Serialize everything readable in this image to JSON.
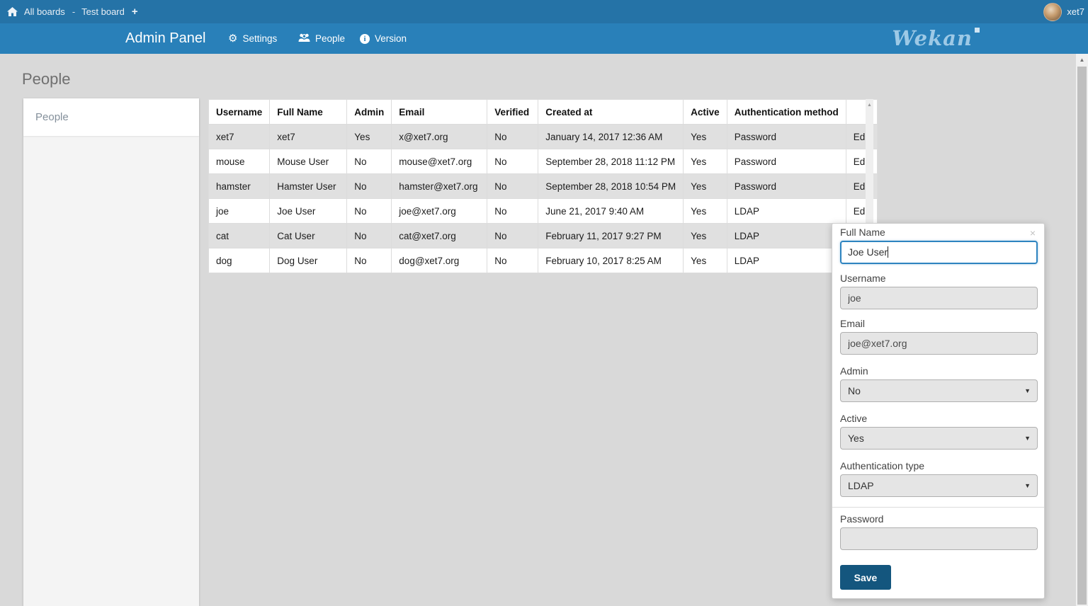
{
  "topbar": {
    "breadcrumb": {
      "all_boards": "All boards",
      "separator": "-",
      "board_name": "Test board"
    },
    "user": {
      "name": "xet7"
    }
  },
  "navbar": {
    "title": "Admin Panel",
    "items": [
      {
        "icon": "gear-icon",
        "label": "Settings"
      },
      {
        "icon": "people-icon",
        "label": "People"
      },
      {
        "icon": "info-icon",
        "label": "Version"
      }
    ],
    "logo_text": "Wekan"
  },
  "main": {
    "heading": "People",
    "sidebar_items": [
      {
        "label": "People",
        "active": true
      }
    ]
  },
  "table": {
    "headers": [
      "Username",
      "Full Name",
      "Admin",
      "Email",
      "Verified",
      "Created at",
      "Active",
      "Authentication method",
      ""
    ],
    "rows": [
      [
        "xet7",
        "xet7",
        "Yes",
        "x@xet7.org",
        "No",
        "January 14, 2017 12:36 AM",
        "Yes",
        "Password"
      ],
      [
        "mouse",
        "Mouse User",
        "No",
        "mouse@xet7.org",
        "No",
        "September 28, 2018 11:12 PM",
        "Yes",
        "Password"
      ],
      [
        "hamster",
        "Hamster User",
        "No",
        "hamster@xet7.org",
        "No",
        "September 28, 2018 10:54 PM",
        "Yes",
        "Password"
      ],
      [
        "joe",
        "Joe User",
        "No",
        "joe@xet7.org",
        "No",
        "June 21, 2017 9:40 AM",
        "Yes",
        "LDAP"
      ],
      [
        "cat",
        "Cat User",
        "No",
        "cat@xet7.org",
        "No",
        "February 11, 2017 9:27 PM",
        "Yes",
        "LDAP"
      ],
      [
        "dog",
        "Dog User",
        "No",
        "dog@xet7.org",
        "No",
        "February 10, 2017 8:25 AM",
        "Yes",
        "LDAP"
      ]
    ],
    "edit_label": "Edit"
  },
  "edit_form": {
    "close_icon": "×",
    "full_name": {
      "label": "Full Name",
      "value": "Joe User"
    },
    "username": {
      "label": "Username",
      "value": "joe"
    },
    "email": {
      "label": "Email",
      "value": "joe@xet7.org"
    },
    "admin": {
      "label": "Admin",
      "value": "No"
    },
    "active": {
      "label": "Active",
      "value": "Yes"
    },
    "auth_type": {
      "label": "Authentication type",
      "value": "LDAP"
    },
    "password": {
      "label": "Password",
      "value": ""
    },
    "save_label": "Save"
  },
  "colors": {
    "topbar_bg": "#2573a7",
    "navbar_bg": "#2980b9",
    "page_bg": "#d9d9d9",
    "row_alt_bg": "#e0e0e0",
    "focus_border": "#2e84c0",
    "save_button_bg": "#14567e",
    "logo_color": "#9dc9e6"
  }
}
